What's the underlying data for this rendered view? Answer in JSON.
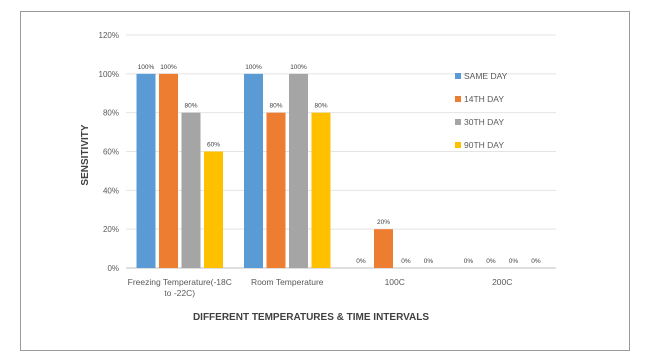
{
  "chart_data": {
    "type": "bar",
    "categories": [
      "Freezing Temperature(-18C to -22C)",
      "Room Temperature",
      "100C",
      "200C"
    ],
    "category_lines": [
      [
        "Freezing Temperature(-18C",
        "to -22C)"
      ],
      [
        "Room Temperature"
      ],
      [
        "100C"
      ],
      [
        "200C"
      ]
    ],
    "series": [
      {
        "name": "SAME DAY",
        "color": "#5b9bd5",
        "values": [
          100,
          100,
          0,
          0
        ]
      },
      {
        "name": "14TH DAY",
        "color": "#ed7d31",
        "values": [
          100,
          80,
          20,
          0
        ]
      },
      {
        "name": "30TH DAY",
        "color": "#a5a5a5",
        "values": [
          80,
          100,
          0,
          0
        ]
      },
      {
        "name": "90TH DAY",
        "color": "#ffc000",
        "values": [
          60,
          80,
          0,
          0
        ]
      }
    ],
    "ylabel": "SENSITIVITY",
    "xlabel": "DIFFERENT TEMPERATURES & TIME INTERVALS",
    "ylim": [
      0,
      120
    ],
    "yticks": [
      0,
      20,
      40,
      60,
      80,
      100,
      120
    ],
    "tick_suffix": "%",
    "grid": true,
    "legend_position": "right"
  }
}
